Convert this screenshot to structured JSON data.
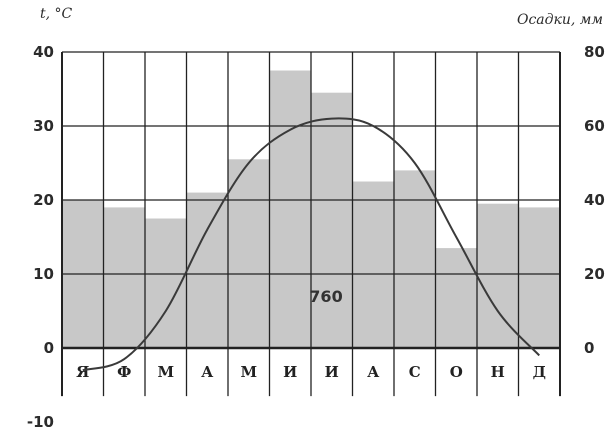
{
  "chart_data": {
    "type": "bar+line",
    "categories": [
      "Я",
      "Ф",
      "М",
      "А",
      "М",
      "И",
      "И",
      "А",
      "С",
      "О",
      "Н",
      "Д"
    ],
    "bars": {
      "axis": "right",
      "values": [
        40,
        38,
        35,
        42,
        51,
        75,
        69,
        45,
        48,
        27,
        39,
        38
      ]
    },
    "line": {
      "axis": "left",
      "values": [
        -3,
        -1.5,
        5,
        16,
        25,
        29.5,
        31,
        30,
        25,
        15,
        5,
        -1
      ]
    },
    "y_left": {
      "label": "t, °C",
      "ticks": [
        40,
        30,
        20,
        10,
        0,
        -10
      ],
      "ylim": [
        -10,
        40
      ]
    },
    "y_right": {
      "label": "Осадки, мм",
      "ticks": [
        80,
        60,
        40,
        20,
        0
      ],
      "ylim": [
        -20,
        80
      ]
    },
    "annotation": "760",
    "grid": true
  },
  "colors": {
    "bar": "#c8c8c8",
    "line": "#3a3a3a",
    "grid": "#222222"
  }
}
